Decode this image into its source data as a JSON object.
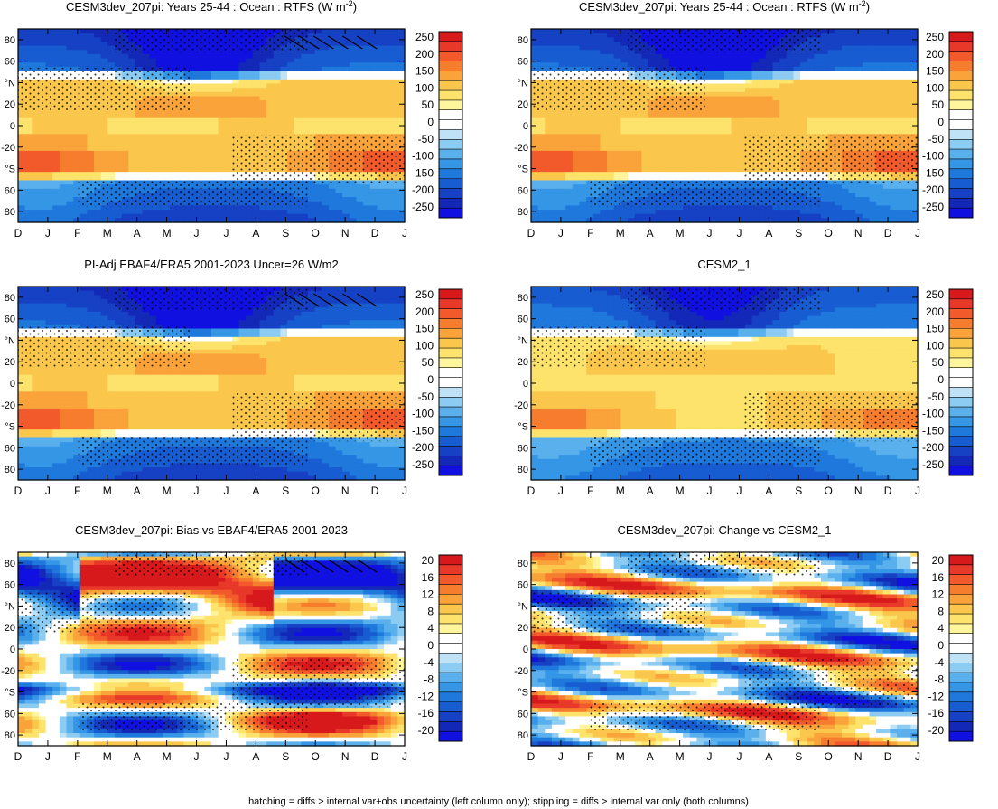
{
  "footer": "hatching = diffs > internal var+obs uncertainty (left column only); stippling = diffs > internal var only (both columns)",
  "chart_data": [
    {
      "type": "heatmap",
      "title_main": "CESM3dev_207pi: Years 25-44 : Ocean : RTFS (W m",
      "title_sup": "-2",
      "title_end": ")",
      "field": "abs",
      "hatch": true,
      "x_ticks": [
        "D",
        "J",
        "F",
        "M",
        "A",
        "M",
        "J",
        "J",
        "A",
        "S",
        "O",
        "N",
        "D",
        "J"
      ],
      "y_ticks": [
        "80",
        "60",
        "40",
        "20",
        "0",
        "-20",
        "-40",
        "-60",
        "-80"
      ],
      "y_tick_labels": [
        "80",
        "60",
        "°N",
        "20",
        "0",
        "-20",
        "°S",
        "60",
        "80"
      ],
      "colorbar_levels": [
        "250",
        "200",
        "150",
        "100",
        "50",
        "0",
        "-50",
        "-100",
        "-150",
        "-200",
        "-250"
      ],
      "colorbar_colors": [
        "#d7191c",
        "#e8382a",
        "#f2592b",
        "#f77d2e",
        "#f9a33a",
        "#fbc64c",
        "#fde26b",
        "#fff59d",
        "#ffffff",
        "#ffffff",
        "#bfe2f7",
        "#8ccbf2",
        "#5ab0ec",
        "#3596e6",
        "#1f78dc",
        "#175cd0",
        "#1641c4",
        "#1428b8",
        "#1010e0"
      ]
    },
    {
      "type": "heatmap",
      "title_main": "CESM3dev_207pi: Years 25-44 : Ocean : RTFS (W m",
      "title_sup": "-2",
      "title_end": ")",
      "field": "abs",
      "hatch": false,
      "x_ticks": [
        "D",
        "J",
        "F",
        "M",
        "A",
        "M",
        "J",
        "J",
        "A",
        "S",
        "O",
        "N",
        "D",
        "J"
      ],
      "y_tick_labels": [
        "80",
        "60",
        "°N",
        "20",
        "0",
        "-20",
        "°S",
        "60",
        "80"
      ],
      "colorbar_levels": [
        "250",
        "200",
        "150",
        "100",
        "50",
        "0",
        "-50",
        "-100",
        "-150",
        "-200",
        "-250"
      ]
    },
    {
      "type": "heatmap",
      "title_main": "PI-Adj EBAF4/ERA5 2001-2023 Uncer=26 W/m2",
      "title_sup": "",
      "title_end": "",
      "field": "abs",
      "hatch": true,
      "x_ticks": [
        "D",
        "J",
        "F",
        "M",
        "A",
        "M",
        "J",
        "J",
        "A",
        "S",
        "O",
        "N",
        "D",
        "J"
      ],
      "y_tick_labels": [
        "80",
        "60",
        "°N",
        "20",
        "0",
        "-20",
        "°S",
        "60",
        "80"
      ],
      "colorbar_levels": [
        "250",
        "200",
        "150",
        "100",
        "50",
        "0",
        "-50",
        "-100",
        "-150",
        "-200",
        "-250"
      ]
    },
    {
      "type": "heatmap",
      "title_main": "CESM2_1",
      "title_sup": "",
      "title_end": "",
      "field": "abs",
      "hatch": false,
      "x_ticks": [
        "D",
        "J",
        "F",
        "M",
        "A",
        "M",
        "J",
        "J",
        "A",
        "S",
        "O",
        "N",
        "D",
        "J"
      ],
      "y_tick_labels": [
        "80",
        "60",
        "°N",
        "20",
        "0",
        "-20",
        "°S",
        "60",
        "80"
      ],
      "colorbar_levels": [
        "250",
        "200",
        "150",
        "100",
        "50",
        "0",
        "-50",
        "-100",
        "-150",
        "-200",
        "-250"
      ]
    },
    {
      "type": "heatmap",
      "title_main": "CESM3dev_207pi: Bias vs EBAF4/ERA5 2001-2023",
      "title_sup": "",
      "title_end": "",
      "field": "bias",
      "hatch": true,
      "x_ticks": [
        "D",
        "J",
        "F",
        "M",
        "A",
        "M",
        "J",
        "J",
        "A",
        "S",
        "O",
        "N",
        "D",
        "J"
      ],
      "y_tick_labels": [
        "80",
        "60",
        "°N",
        "20",
        "0",
        "-20",
        "°S",
        "60",
        "80"
      ],
      "colorbar_levels": [
        "20",
        "16",
        "12",
        "8",
        "4",
        "0",
        "-4",
        "-8",
        "-12",
        "-16",
        "-20"
      ]
    },
    {
      "type": "heatmap",
      "title_main": "CESM3dev_207pi: Change vs CESM2_1",
      "title_sup": "",
      "title_end": "",
      "field": "change",
      "hatch": false,
      "x_ticks": [
        "D",
        "J",
        "F",
        "M",
        "A",
        "M",
        "J",
        "J",
        "A",
        "S",
        "O",
        "N",
        "D",
        "J"
      ],
      "y_tick_labels": [
        "80",
        "60",
        "°N",
        "20",
        "0",
        "-20",
        "°S",
        "60",
        "80"
      ],
      "colorbar_levels": [
        "20",
        "16",
        "12",
        "8",
        "4",
        "0",
        "-4",
        "-8",
        "-12",
        "-16",
        "-20"
      ]
    }
  ]
}
